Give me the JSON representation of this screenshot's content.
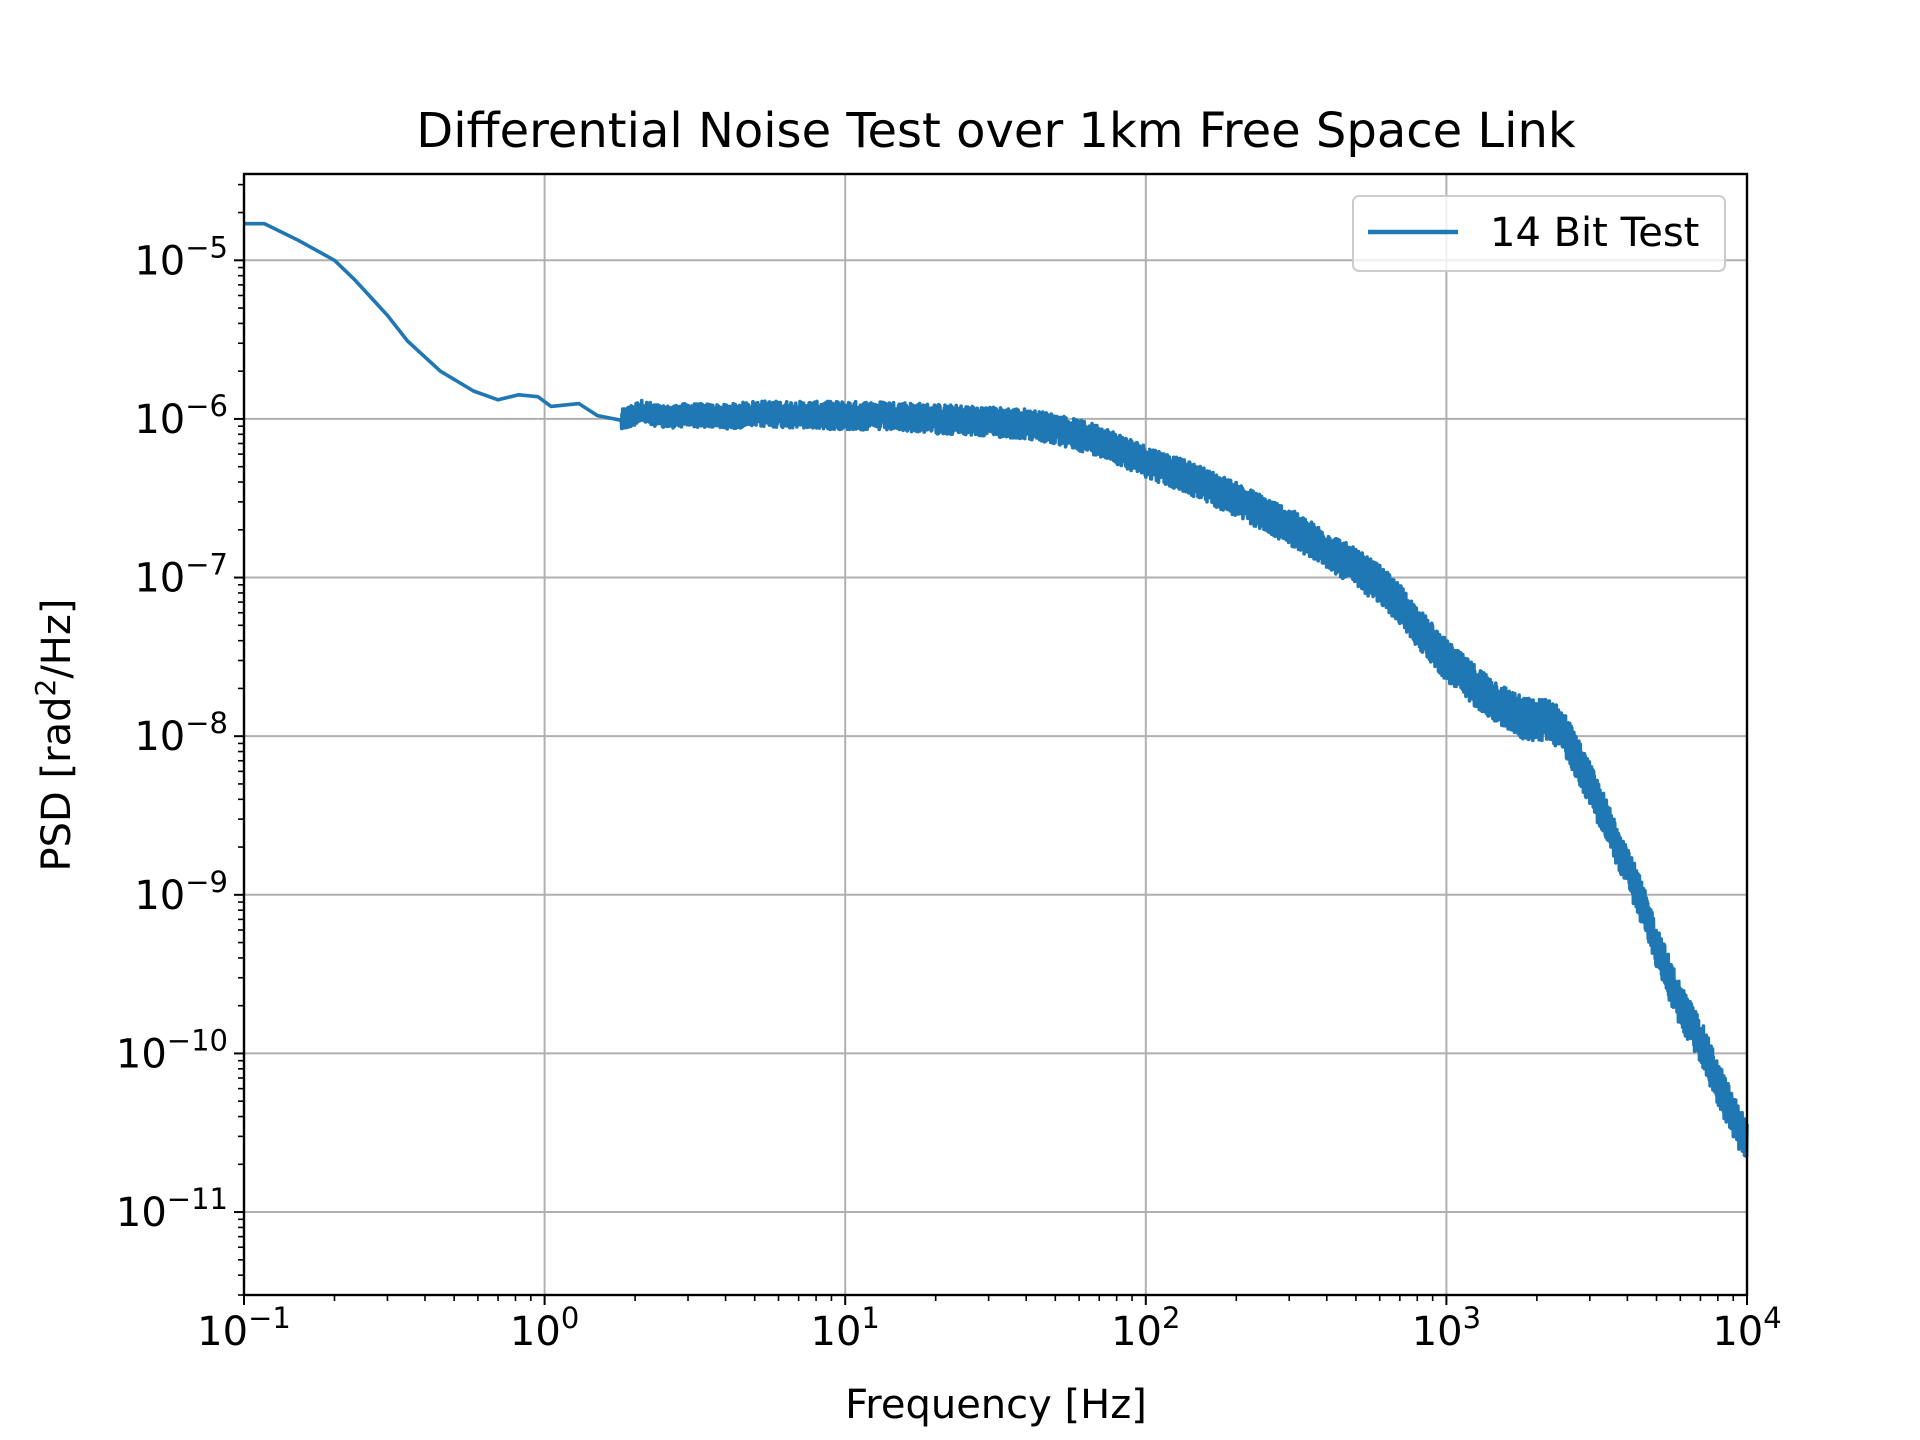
{
  "chart_data": {
    "type": "line",
    "title": "Differential Noise Test over 1km Free Space Link",
    "xlabel": "Frequency [Hz]",
    "ylabel": {
      "prefix": "PSD [rad",
      "sup": "2",
      "suffix": "/Hz]"
    },
    "xscale": "log",
    "yscale": "log",
    "xlim": [
      0.1,
      10000
    ],
    "ylim": [
      3e-12,
      3.5e-05
    ],
    "grid": true,
    "legend_position": "top-right",
    "x_ticks": [
      {
        "value": 0.1,
        "base": "10",
        "exp": "−1"
      },
      {
        "value": 1,
        "base": "10",
        "exp": "0"
      },
      {
        "value": 10,
        "base": "10",
        "exp": "1"
      },
      {
        "value": 100,
        "base": "10",
        "exp": "2"
      },
      {
        "value": 1000,
        "base": "10",
        "exp": "3"
      },
      {
        "value": 10000,
        "base": "10",
        "exp": "4"
      }
    ],
    "y_ticks": [
      {
        "value": 1e-05,
        "base": "10",
        "exp": "−5"
      },
      {
        "value": 1e-06,
        "base": "10",
        "exp": "−6"
      },
      {
        "value": 1e-07,
        "base": "10",
        "exp": "−7"
      },
      {
        "value": 1e-08,
        "base": "10",
        "exp": "−8"
      },
      {
        "value": 1e-09,
        "base": "10",
        "exp": "−9"
      },
      {
        "value": 1e-10,
        "base": "10",
        "exp": "−10"
      },
      {
        "value": 1e-11,
        "base": "10",
        "exp": "−11"
      }
    ],
    "series": [
      {
        "name": "14 Bit Test",
        "color": "#1f77b4",
        "noise_band_decades": [
          [
            1,
            0.06
          ],
          [
            10,
            0.09
          ],
          [
            100,
            0.1
          ],
          [
            1000,
            0.13
          ],
          [
            10000,
            0.14
          ]
        ],
        "points": [
          [
            0.1,
            1.7e-05
          ],
          [
            0.117,
            1.7e-05
          ],
          [
            0.15,
            1.35e-05
          ],
          [
            0.2,
            1e-05
          ],
          [
            0.234,
            7.5e-06
          ],
          [
            0.3,
            4.5e-06
          ],
          [
            0.35,
            3.1e-06
          ],
          [
            0.45,
            2e-06
          ],
          [
            0.58,
            1.5e-06
          ],
          [
            0.7,
            1.32e-06
          ],
          [
            0.82,
            1.42e-06
          ],
          [
            0.95,
            1.38e-06
          ],
          [
            1.05,
            1.2e-06
          ],
          [
            1.3,
            1.25e-06
          ],
          [
            1.5,
            1.05e-06
          ],
          [
            1.8,
            9.8e-07
          ],
          [
            2.1,
            1.12e-06
          ],
          [
            2.5,
            1.02e-06
          ],
          [
            3,
            1.06e-06
          ],
          [
            4,
            1.03e-06
          ],
          [
            5,
            1.08e-06
          ],
          [
            7,
            1.06e-06
          ],
          [
            10,
            1.05e-06
          ],
          [
            15,
            1.04e-06
          ],
          [
            20,
            1e-06
          ],
          [
            30,
            9.6e-07
          ],
          [
            40,
            9.3e-07
          ],
          [
            50,
            8.6e-07
          ],
          [
            70,
            7.3e-07
          ],
          [
            100,
            5.4e-07
          ],
          [
            150,
            4e-07
          ],
          [
            200,
            3.1e-07
          ],
          [
            300,
            2.1e-07
          ],
          [
            400,
            1.5e-07
          ],
          [
            500,
            1.15e-07
          ],
          [
            600,
            9e-08
          ],
          [
            700,
            6.8e-08
          ],
          [
            800,
            4.9e-08
          ],
          [
            900,
            3.8e-08
          ],
          [
            1000,
            3e-08
          ],
          [
            1200,
            2.2e-08
          ],
          [
            1500,
            1.6e-08
          ],
          [
            1800,
            1.3e-08
          ],
          [
            2000,
            1.25e-08
          ],
          [
            2200,
            1.3e-08
          ],
          [
            2500,
            1e-08
          ],
          [
            2800,
            6.5e-09
          ],
          [
            3000,
            5e-09
          ],
          [
            3500,
            2.6e-09
          ],
          [
            4000,
            1.5e-09
          ],
          [
            4500,
            8.5e-10
          ],
          [
            5000,
            4.8e-10
          ],
          [
            5500,
            3e-10
          ],
          [
            6000,
            2e-10
          ],
          [
            7000,
            1.2e-10
          ],
          [
            8000,
            6.5e-11
          ],
          [
            9000,
            4e-11
          ],
          [
            10000,
            2.7e-11
          ]
        ]
      }
    ]
  }
}
